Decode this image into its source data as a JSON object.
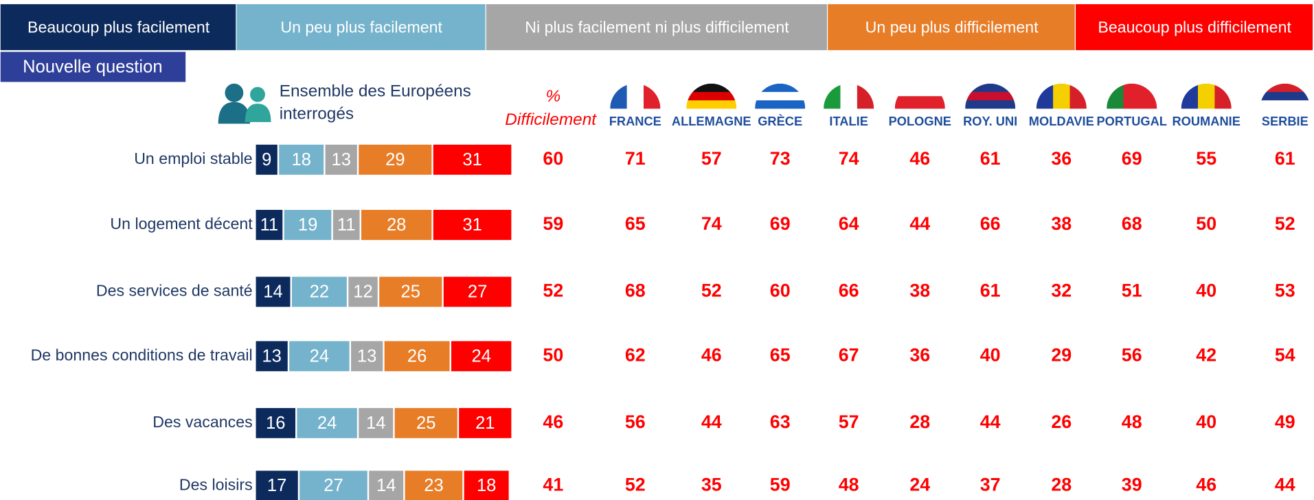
{
  "chart_data": {
    "type": "bar",
    "orientation": "horizontal",
    "stacked": true,
    "badge": "Nouvelle question",
    "group_label": [
      "Ensemble des Européens",
      "interrogés"
    ],
    "categories": [
      "Un emploi stable",
      "Un logement décent",
      "Des services de santé",
      "De bonnes conditions de travail",
      "Des vacances",
      "Des loisirs"
    ],
    "xlim": [
      0,
      100
    ],
    "series": [
      {
        "name": "Beaucoup plus facilement",
        "color": "#0d2a5c",
        "values": [
          9,
          11,
          14,
          13,
          16,
          17
        ]
      },
      {
        "name": "Un peu plus facilement",
        "color": "#74b3cb",
        "values": [
          18,
          19,
          22,
          24,
          24,
          27
        ]
      },
      {
        "name": "Ni plus facilement ni plus difficilement",
        "color": "#a6a6a6",
        "values": [
          13,
          11,
          12,
          13,
          14,
          14
        ]
      },
      {
        "name": "Un peu plus difficilement",
        "color": "#e87d28",
        "values": [
          29,
          28,
          25,
          26,
          25,
          23
        ]
      },
      {
        "name": "Beaucoup plus difficilement",
        "color": "#ff0000",
        "values": [
          31,
          31,
          27,
          24,
          21,
          18
        ]
      }
    ],
    "difficult_header": [
      "%",
      "Difficilement"
    ],
    "difficult_total": [
      60,
      59,
      52,
      50,
      46,
      41
    ],
    "countries": [
      "FRANCE",
      "ALLEMAGNE",
      "GRÈCE",
      "ITALIE",
      "POLOGNE",
      "ROY. UNI",
      "MOLDAVIE",
      "PORTUGAL",
      "ROUMANIE",
      "SERBIE"
    ],
    "country_values": [
      [
        71,
        57,
        73,
        74,
        46,
        61,
        36,
        69,
        55,
        61
      ],
      [
        65,
        74,
        69,
        64,
        44,
        66,
        38,
        68,
        50,
        52
      ],
      [
        68,
        52,
        60,
        66,
        38,
        61,
        32,
        51,
        40,
        53
      ],
      [
        62,
        46,
        65,
        67,
        36,
        40,
        29,
        56,
        42,
        54
      ],
      [
        56,
        44,
        63,
        57,
        28,
        44,
        26,
        48,
        40,
        49
      ],
      [
        52,
        35,
        59,
        48,
        24,
        37,
        28,
        39,
        46,
        44
      ]
    ]
  }
}
